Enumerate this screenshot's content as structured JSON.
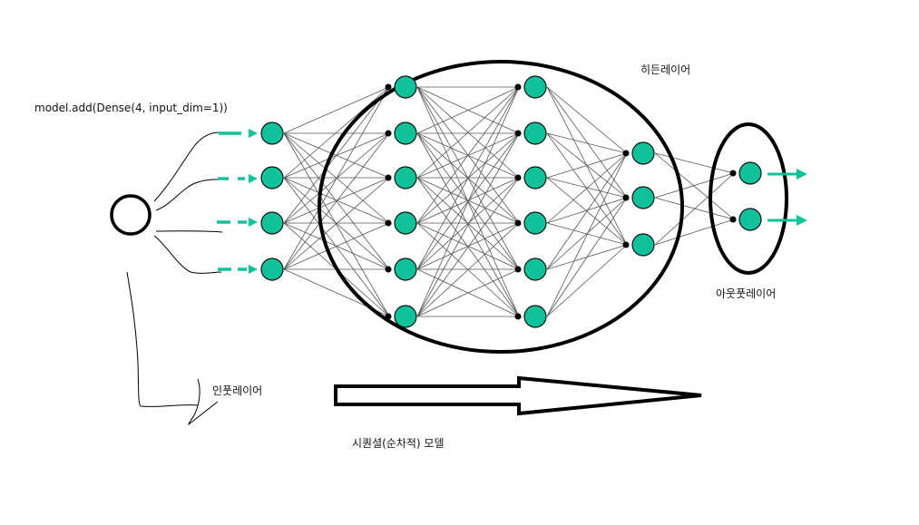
{
  "labels": {
    "code": "model.add(Dense(4,  input_dim=1))",
    "hidden_layer": "히든레이어",
    "output_layer": "아웃풋레이어",
    "input_layer": "인풋레이어",
    "sequential_model": "시퀀셜(순차적) 모델"
  },
  "network": {
    "layers": [
      {
        "name": "input",
        "nodes": 4
      },
      {
        "name": "hidden-1",
        "nodes": 6
      },
      {
        "name": "hidden-2",
        "nodes": 6
      },
      {
        "name": "hidden-3",
        "nodes": 3
      },
      {
        "name": "output",
        "nodes": 2
      }
    ]
  },
  "colors": {
    "node_fill": "#0fc29a",
    "arrow": "#0fc29a",
    "edge": "#555555",
    "outline": "#000000"
  }
}
